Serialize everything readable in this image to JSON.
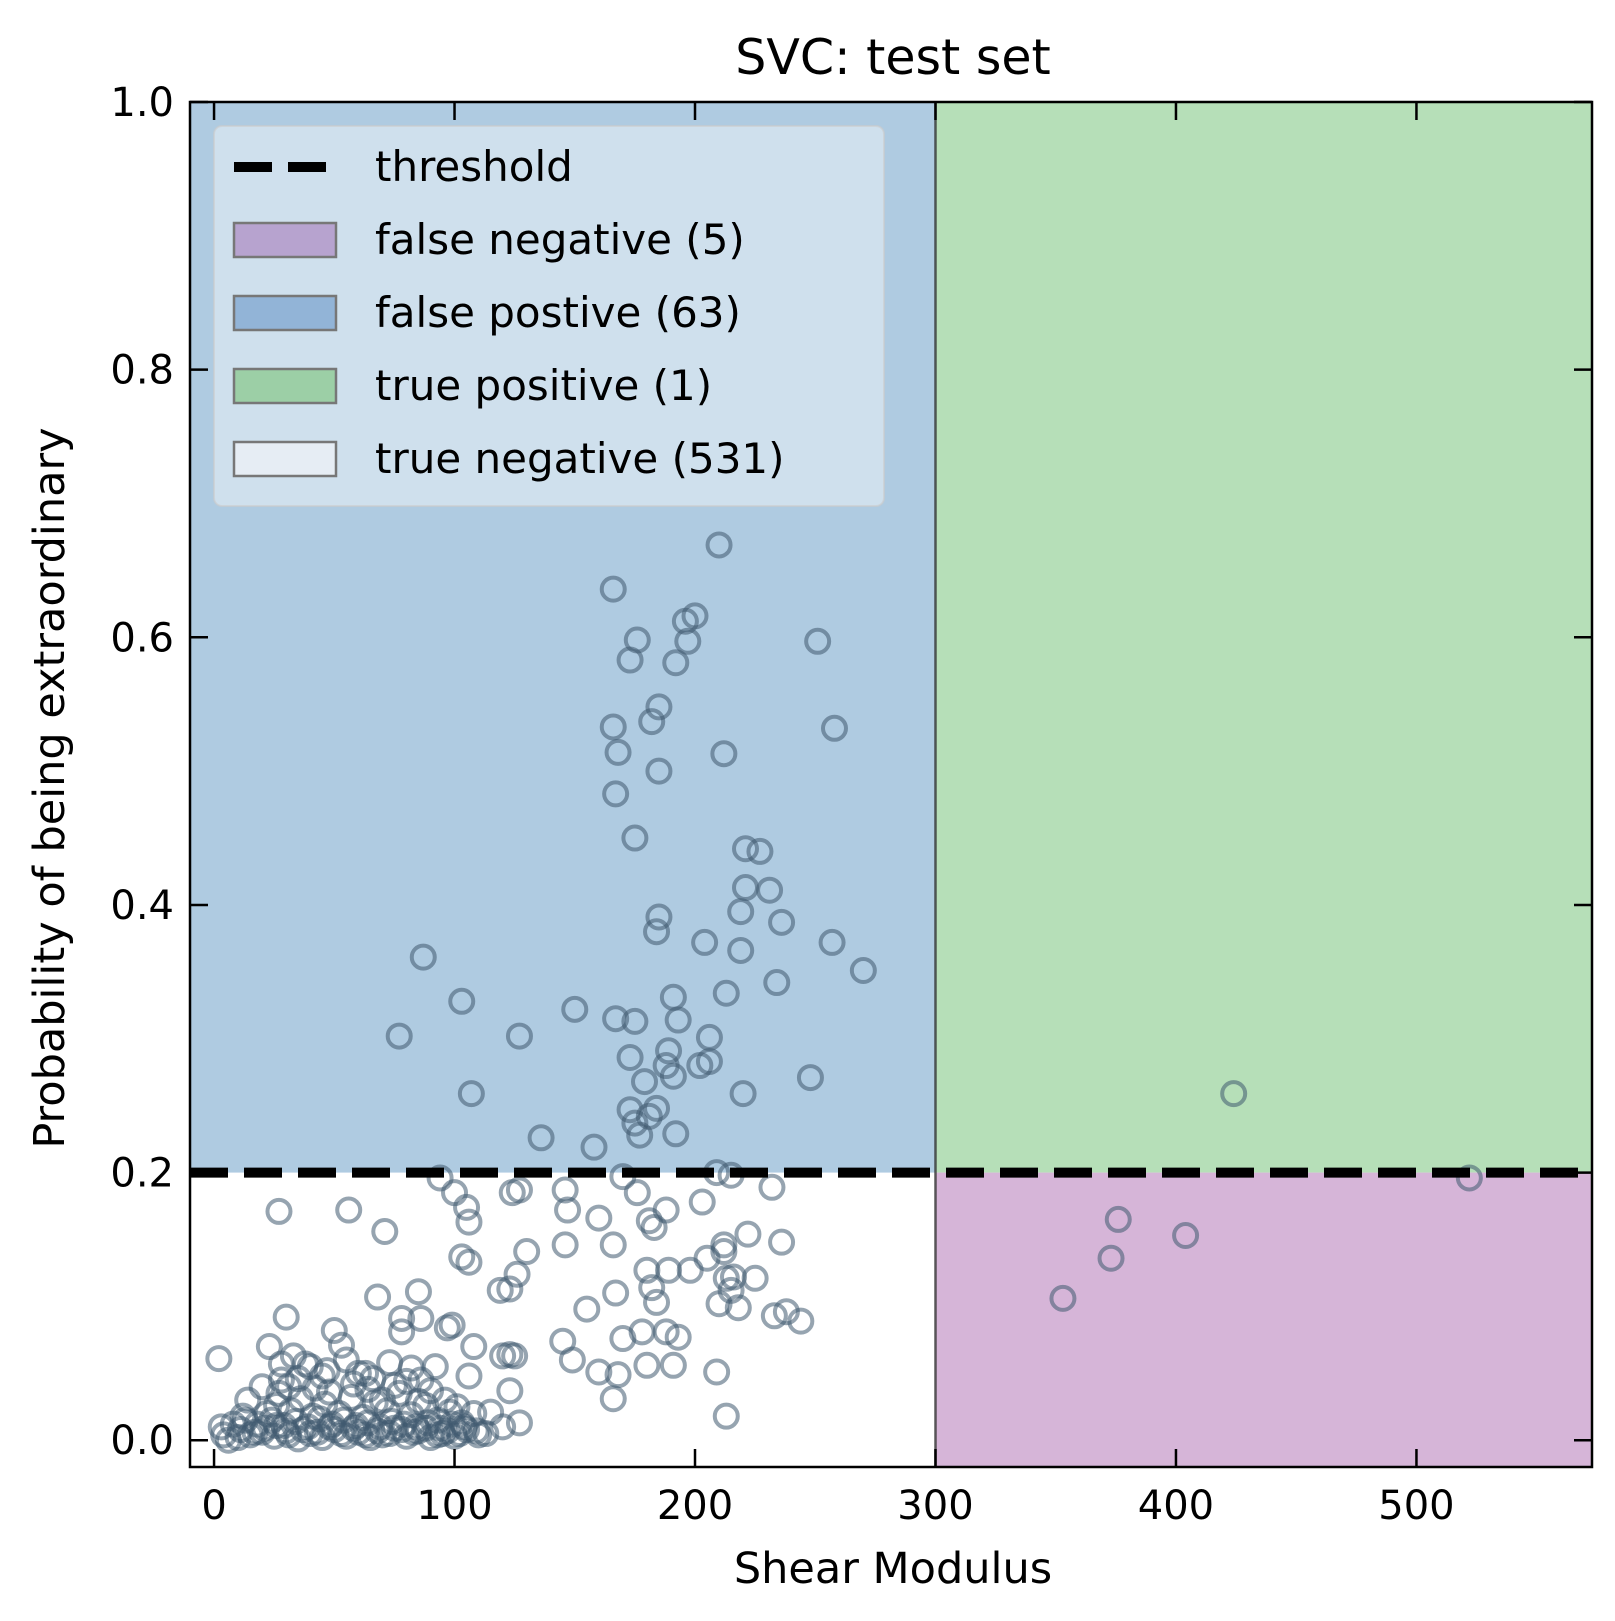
{
  "chart_data": {
    "type": "scatter",
    "title": "SVC: test set",
    "xlabel": "Shear Modulus",
    "ylabel": "Probability of being extraordinary",
    "xlim": [
      -10,
      573
    ],
    "ylim": [
      -0.02,
      1.0
    ],
    "xticks": [
      0,
      100,
      200,
      300,
      400,
      500
    ],
    "xtick_labels": [
      "0",
      "100",
      "200",
      "300",
      "400",
      "500"
    ],
    "yticks": [
      0.0,
      0.2,
      0.4,
      0.6,
      0.8,
      1.0
    ],
    "ytick_labels": [
      "0.0",
      "0.2",
      "0.4",
      "0.6",
      "0.8",
      "1.0"
    ],
    "threshold": {
      "x": 300,
      "y": 0.2
    },
    "grid": false,
    "legend_position": "top-left",
    "legend": [
      {
        "key": "threshold",
        "label": "threshold",
        "kind": "dashed-line",
        "color": "#000000"
      },
      {
        "key": "false_negative",
        "label": "false negative (5)",
        "kind": "patch",
        "color": "#b7a3cf"
      },
      {
        "key": "false_positive",
        "label": "false postive (63)",
        "kind": "patch",
        "color": "#92b4d7"
      },
      {
        "key": "true_positive",
        "label": "true positive (1)",
        "kind": "patch",
        "color": "#9ccfa6"
      },
      {
        "key": "true_negative",
        "label": "true negative (531)",
        "kind": "patch",
        "color": "#e6edf4"
      }
    ],
    "regions": {
      "false_positive": {
        "color": "#afcbe1"
      },
      "true_positive": {
        "color": "#b6dfb8"
      },
      "false_negative": {
        "color": "#d6b5d8"
      },
      "true_negative": {
        "color": "#ffffff"
      }
    },
    "marker_color": "#3f5a70",
    "points": [
      [
        210,
        0.669
      ],
      [
        166,
        0.636
      ],
      [
        200,
        0.616
      ],
      [
        196,
        0.612
      ],
      [
        176,
        0.598
      ],
      [
        251,
        0.597
      ],
      [
        197,
        0.597
      ],
      [
        173,
        0.583
      ],
      [
        192,
        0.581
      ],
      [
        185,
        0.548
      ],
      [
        182,
        0.537
      ],
      [
        166,
        0.533
      ],
      [
        258,
        0.532
      ],
      [
        168,
        0.514
      ],
      [
        212,
        0.513
      ],
      [
        185,
        0.5
      ],
      [
        167,
        0.483
      ],
      [
        175,
        0.45
      ],
      [
        221,
        0.442
      ],
      [
        227,
        0.44
      ],
      [
        221,
        0.413
      ],
      [
        231,
        0.411
      ],
      [
        219,
        0.395
      ],
      [
        236,
        0.387
      ],
      [
        185,
        0.391
      ],
      [
        184,
        0.38
      ],
      [
        87,
        0.361
      ],
      [
        204,
        0.372
      ],
      [
        219,
        0.366
      ],
      [
        257,
        0.372
      ],
      [
        270,
        0.351
      ],
      [
        234,
        0.342
      ],
      [
        103,
        0.328
      ],
      [
        213,
        0.334
      ],
      [
        191,
        0.331
      ],
      [
        150,
        0.322
      ],
      [
        167,
        0.315
      ],
      [
        175,
        0.313
      ],
      [
        193,
        0.314
      ],
      [
        77,
        0.302
      ],
      [
        127,
        0.302
      ],
      [
        206,
        0.301
      ],
      [
        189,
        0.291
      ],
      [
        173,
        0.286
      ],
      [
        188,
        0.28
      ],
      [
        202,
        0.28
      ],
      [
        191,
        0.272
      ],
      [
        206,
        0.283
      ],
      [
        248,
        0.271
      ],
      [
        179,
        0.268
      ],
      [
        107,
        0.259
      ],
      [
        220,
        0.259
      ],
      [
        173,
        0.247
      ],
      [
        184,
        0.248
      ],
      [
        181,
        0.242
      ],
      [
        175,
        0.237
      ],
      [
        177,
        0.228
      ],
      [
        192,
        0.229
      ],
      [
        136,
        0.226
      ],
      [
        158,
        0.219
      ],
      [
        209,
        0.2
      ],
      [
        215,
        0.198
      ],
      [
        170,
        0.197
      ],
      [
        424,
        0.259
      ],
      [
        353,
        0.106
      ],
      [
        373,
        0.136
      ],
      [
        376,
        0.165
      ],
      [
        404,
        0.153
      ],
      [
        522,
        0.196
      ],
      [
        94,
        0.196
      ],
      [
        100,
        0.185
      ],
      [
        105,
        0.174
      ],
      [
        106,
        0.163
      ],
      [
        124,
        0.185
      ],
      [
        127,
        0.187
      ],
      [
        146,
        0.187
      ],
      [
        147,
        0.172
      ],
      [
        160,
        0.166
      ],
      [
        176,
        0.185
      ],
      [
        181,
        0.164
      ],
      [
        183,
        0.159
      ],
      [
        188,
        0.172
      ],
      [
        203,
        0.178
      ],
      [
        212,
        0.141
      ],
      [
        222,
        0.154
      ],
      [
        232,
        0.189
      ],
      [
        236,
        0.148
      ],
      [
        27,
        0.171
      ],
      [
        56,
        0.172
      ],
      [
        71,
        0.156
      ],
      [
        103,
        0.137
      ],
      [
        106,
        0.133
      ],
      [
        119,
        0.112
      ],
      [
        123,
        0.113
      ],
      [
        126,
        0.124
      ],
      [
        130,
        0.141
      ],
      [
        146,
        0.146
      ],
      [
        166,
        0.146
      ],
      [
        180,
        0.127
      ],
      [
        182,
        0.114
      ],
      [
        184,
        0.103
      ],
      [
        189,
        0.127
      ],
      [
        198,
        0.127
      ],
      [
        205,
        0.136
      ],
      [
        212,
        0.146
      ],
      [
        213,
        0.121
      ],
      [
        215,
        0.112
      ],
      [
        216,
        0.122
      ],
      [
        210,
        0.102
      ],
      [
        218,
        0.099
      ],
      [
        225,
        0.121
      ],
      [
        167,
        0.11
      ],
      [
        155,
        0.098
      ],
      [
        68,
        0.107
      ],
      [
        85,
        0.111
      ],
      [
        30,
        0.092
      ],
      [
        23,
        0.07
      ],
      [
        2,
        0.061
      ],
      [
        78,
        0.091
      ],
      [
        78,
        0.081
      ],
      [
        86,
        0.091
      ],
      [
        97,
        0.084
      ],
      [
        99,
        0.086
      ],
      [
        50,
        0.082
      ],
      [
        53,
        0.071
      ],
      [
        145,
        0.074
      ],
      [
        170,
        0.076
      ],
      [
        178,
        0.081
      ],
      [
        188,
        0.081
      ],
      [
        193,
        0.077
      ],
      [
        238,
        0.096
      ],
      [
        233,
        0.093
      ],
      [
        244,
        0.089
      ],
      [
        191,
        0.056
      ],
      [
        180,
        0.056
      ],
      [
        149,
        0.06
      ],
      [
        160,
        0.051
      ],
      [
        168,
        0.049
      ],
      [
        166,
        0.031
      ],
      [
        209,
        0.051
      ],
      [
        213,
        0.018
      ],
      [
        120,
        0.063
      ],
      [
        123,
        0.064
      ],
      [
        125,
        0.063
      ],
      [
        106,
        0.048
      ],
      [
        123,
        0.037
      ],
      [
        115,
        0.021
      ],
      [
        120,
        0.01
      ],
      [
        127,
        0.013
      ],
      [
        108,
        0.07
      ],
      [
        82,
        0.054
      ],
      [
        86,
        0.045
      ],
      [
        60,
        0.05
      ],
      [
        45,
        0.048
      ],
      [
        38,
        0.057
      ],
      [
        28,
        0.057
      ],
      [
        28,
        0.045
      ],
      [
        20,
        0.04
      ],
      [
        14,
        0.03
      ],
      [
        12,
        0.018
      ],
      [
        8,
        0.012
      ],
      [
        3,
        0.01
      ],
      [
        4,
        0.004
      ],
      [
        6,
        0.0
      ],
      [
        10,
        0.002
      ],
      [
        15,
        0.004
      ],
      [
        20,
        0.006
      ],
      [
        25,
        0.003
      ],
      [
        30,
        0.007
      ],
      [
        35,
        0.001
      ],
      [
        40,
        0.005
      ],
      [
        45,
        0.002
      ],
      [
        50,
        0.008
      ],
      [
        55,
        0.003
      ],
      [
        60,
        0.006
      ],
      [
        65,
        0.002
      ],
      [
        70,
        0.004
      ],
      [
        75,
        0.009
      ],
      [
        80,
        0.003
      ],
      [
        85,
        0.007
      ],
      [
        90,
        0.002
      ],
      [
        95,
        0.005
      ],
      [
        100,
        0.003
      ],
      [
        105,
        0.008
      ],
      [
        110,
        0.004
      ],
      [
        22,
        0.02
      ],
      [
        26,
        0.026
      ],
      [
        32,
        0.022
      ],
      [
        36,
        0.031
      ],
      [
        41,
        0.018
      ],
      [
        46,
        0.027
      ],
      [
        52,
        0.02
      ],
      [
        57,
        0.032
      ],
      [
        62,
        0.017
      ],
      [
        67,
        0.028
      ],
      [
        72,
        0.022
      ],
      [
        77,
        0.035
      ],
      [
        82,
        0.019
      ],
      [
        88,
        0.026
      ],
      [
        93,
        0.015
      ],
      [
        98,
        0.021
      ],
      [
        103,
        0.013
      ],
      [
        35,
        0.046
      ],
      [
        42,
        0.039
      ],
      [
        48,
        0.036
      ],
      [
        58,
        0.042
      ],
      [
        64,
        0.038
      ],
      [
        70,
        0.03
      ],
      [
        75,
        0.041
      ],
      [
        80,
        0.044
      ],
      [
        90,
        0.037
      ],
      [
        96,
        0.03
      ],
      [
        18,
        0.012
      ],
      [
        24,
        0.015
      ],
      [
        29,
        0.011
      ],
      [
        34,
        0.014
      ],
      [
        39,
        0.01
      ],
      [
        44,
        0.016
      ],
      [
        49,
        0.012
      ],
      [
        54,
        0.015
      ],
      [
        59,
        0.011
      ],
      [
        64,
        0.013
      ],
      [
        69,
        0.01
      ],
      [
        74,
        0.014
      ],
      [
        79,
        0.012
      ],
      [
        84,
        0.01
      ],
      [
        89,
        0.013
      ],
      [
        94,
        0.009
      ],
      [
        99,
        0.012
      ],
      [
        104,
        0.01
      ],
      [
        109,
        0.007
      ],
      [
        113,
        0.005
      ],
      [
        33,
        0.063
      ],
      [
        40,
        0.055
      ],
      [
        55,
        0.06
      ],
      [
        63,
        0.05
      ],
      [
        73,
        0.058
      ],
      [
        92,
        0.055
      ],
      [
        27,
        0.035
      ],
      [
        31,
        0.04
      ],
      [
        47,
        0.052
      ],
      [
        66,
        0.046
      ],
      [
        85,
        0.029
      ],
      [
        101,
        0.025
      ],
      [
        108,
        0.02
      ],
      [
        11,
        0.008
      ],
      [
        13,
        0.015
      ],
      [
        17,
        0.006
      ],
      [
        21,
        0.009
      ],
      [
        26,
        0.011
      ],
      [
        31,
        0.004
      ],
      [
        37,
        0.008
      ],
      [
        43,
        0.006
      ],
      [
        48,
        0.01
      ],
      [
        53,
        0.005
      ],
      [
        58,
        0.009
      ],
      [
        63,
        0.004
      ],
      [
        68,
        0.007
      ],
      [
        73,
        0.005
      ],
      [
        78,
        0.008
      ],
      [
        83,
        0.006
      ],
      [
        88,
        0.009
      ],
      [
        93,
        0.004
      ],
      [
        97,
        0.007
      ],
      [
        102,
        0.005
      ]
    ]
  }
}
